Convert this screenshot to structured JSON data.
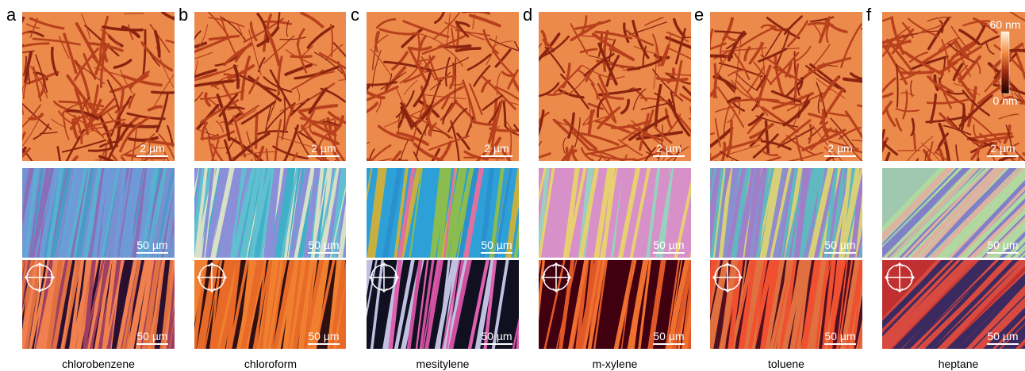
{
  "panels": [
    {
      "label": "a",
      "solvent": "chlorobenzene",
      "afm_scale": "2 µm",
      "optical_scale": "50 µm",
      "polarized_scale": "50 µm"
    },
    {
      "label": "b",
      "solvent": "chloroform",
      "afm_scale": "2 µm",
      "optical_scale": "50 µm",
      "polarized_scale": "50 µm"
    },
    {
      "label": "c",
      "solvent": "mesitylene",
      "afm_scale": "2 µm",
      "optical_scale": "50 µm",
      "polarized_scale": "50 µm"
    },
    {
      "label": "d",
      "solvent": "m-xylene",
      "afm_scale": "2 µm",
      "optical_scale": "50 µm",
      "polarized_scale": "50 µm"
    },
    {
      "label": "e",
      "solvent": "toluene",
      "afm_scale": "2 µm",
      "optical_scale": "50 µm",
      "polarized_scale": "50 µm"
    },
    {
      "label": "f",
      "solvent": "heptane",
      "afm_scale": "2 µm",
      "optical_scale": "50 µm",
      "polarized_scale": "50 µm"
    }
  ],
  "colorbar": {
    "max": "60 nm",
    "min": "0 nm"
  }
}
